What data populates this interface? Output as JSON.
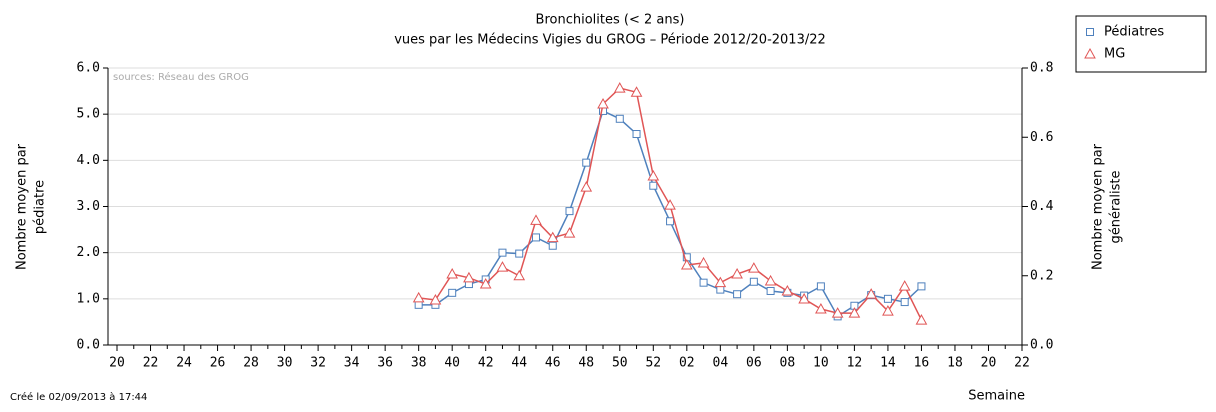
{
  "chart_data": {
    "type": "line",
    "title": "Bronchiolites (< 2 ans)",
    "subtitle": "vues par les Médecins Vigies du GROG – Période 2012/20-2013/22",
    "annotation": "sources: Réseau des GROG",
    "footer": "Créé le 02/09/2013 à 17:44",
    "x_label": "Semaine",
    "y_label": [
      "Nombre moyen par",
      "pédiatre"
    ],
    "y2_label": [
      "Nombre moyen par",
      "généraliste"
    ],
    "categories": [
      "20",
      null,
      "22",
      null,
      "24",
      null,
      "26",
      null,
      "28",
      null,
      "30",
      null,
      "32",
      null,
      "34",
      null,
      "36",
      null,
      "38",
      null,
      "40",
      null,
      "42",
      null,
      "44",
      null,
      "46",
      null,
      "48",
      null,
      "50",
      null,
      "52",
      null,
      "02",
      null,
      "04",
      null,
      "06",
      null,
      "08",
      null,
      "10",
      null,
      "12",
      null,
      "14",
      null,
      "16",
      null,
      "18",
      null,
      "20",
      null,
      "22"
    ],
    "series": [
      {
        "name": "Pédiatres",
        "color": "#4f81bd",
        "marker": "square",
        "axis": "y",
        "values": [
          null,
          null,
          null,
          null,
          null,
          null,
          null,
          null,
          null,
          null,
          null,
          null,
          null,
          null,
          null,
          null,
          null,
          null,
          0.87,
          0.87,
          1.13,
          1.32,
          1.42,
          2.0,
          1.98,
          2.33,
          2.15,
          2.9,
          3.95,
          5.07,
          4.9,
          4.57,
          3.45,
          2.68,
          1.9,
          1.35,
          1.2,
          1.1,
          1.37,
          1.17,
          1.13,
          1.07,
          1.27,
          0.62,
          0.85,
          1.08,
          1.0,
          0.93,
          1.27,
          null,
          null,
          null,
          null,
          null,
          null
        ]
      },
      {
        "name": "MG",
        "color": "#e05555",
        "marker": "triangle",
        "axis": "y2",
        "values": [
          null,
          null,
          null,
          null,
          null,
          null,
          null,
          null,
          null,
          null,
          null,
          null,
          null,
          null,
          null,
          null,
          null,
          null,
          0.136,
          0.13,
          0.205,
          0.194,
          0.176,
          0.225,
          0.2,
          0.36,
          0.31,
          0.323,
          0.456,
          0.696,
          0.742,
          0.73,
          0.488,
          0.404,
          0.231,
          0.237,
          0.18,
          0.205,
          0.222,
          0.185,
          0.156,
          0.133,
          0.104,
          0.092,
          0.092,
          0.147,
          0.098,
          0.17,
          0.072,
          null,
          null,
          null,
          null,
          null,
          null
        ]
      }
    ],
    "ylim": [
      0,
      6
    ],
    "yticks": [
      {
        "value": 0,
        "label": "0.0"
      },
      {
        "value": 1,
        "label": "1.0"
      },
      {
        "value": 2,
        "label": "2.0"
      },
      {
        "value": 3,
        "label": "3.0"
      },
      {
        "value": 4,
        "label": "4.0"
      },
      {
        "value": 5,
        "label": "5.0"
      },
      {
        "value": 6,
        "label": "6.0"
      }
    ],
    "y2lim": [
      0,
      0.8
    ],
    "y2ticks": [
      {
        "value": 0,
        "label": "0.0"
      },
      {
        "value": 0.2,
        "label": "0.2"
      },
      {
        "value": 0.4,
        "label": "0.4"
      },
      {
        "value": 0.6,
        "label": "0.6"
      },
      {
        "value": 0.8,
        "label": "0.8"
      }
    ],
    "grid": true,
    "legend": "top-right"
  }
}
